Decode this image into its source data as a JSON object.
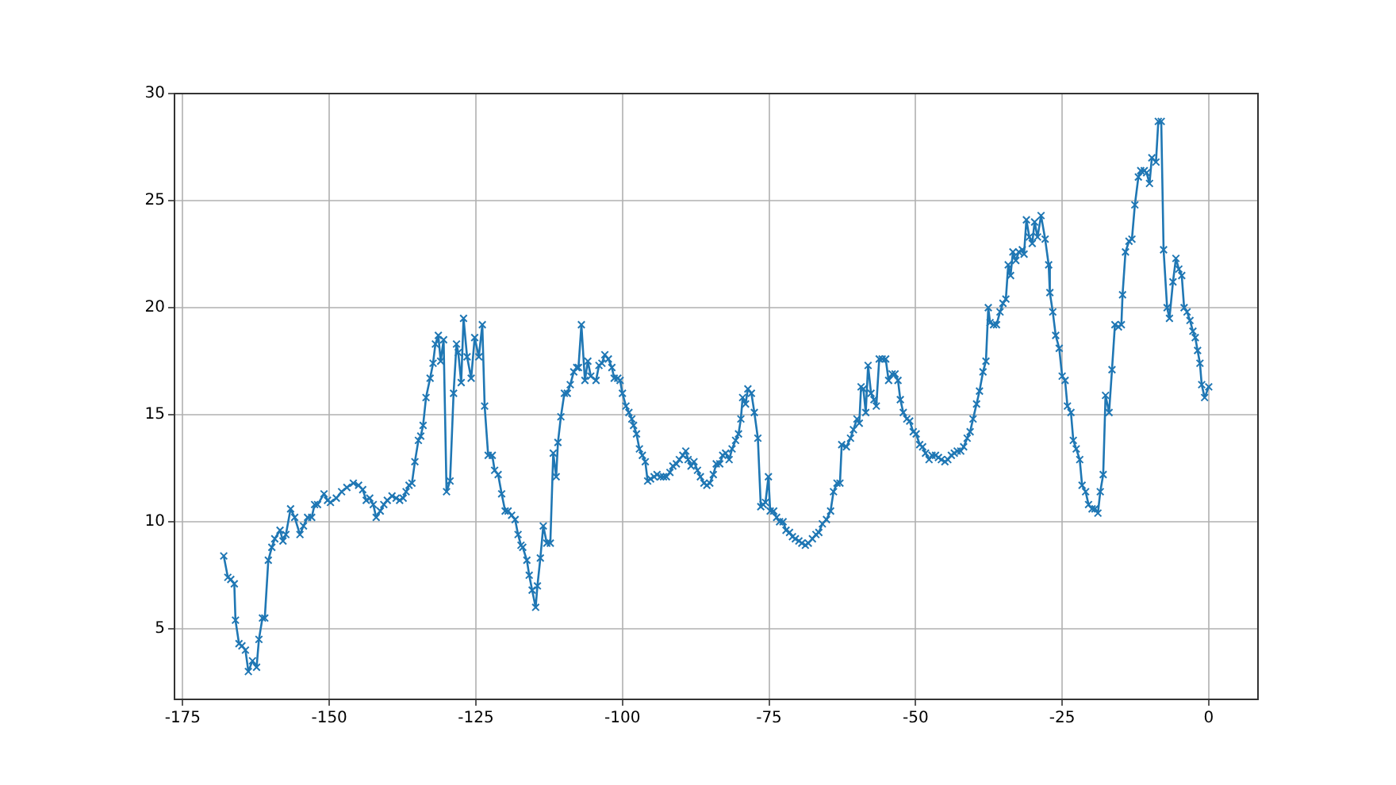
{
  "chart_data": {
    "type": "line",
    "x": [
      -168,
      -167.3,
      -166.8,
      -166.2,
      -166,
      -165.4,
      -164.9,
      -164.3,
      -163.8,
      -163.1,
      -162.4,
      -162,
      -161.4,
      -161,
      -160.4,
      -159.8,
      -159.3,
      -158.4,
      -157.9,
      -157.4,
      -156.6,
      -155.9,
      -155,
      -154.4,
      -153.7,
      -153,
      -152.5,
      -152,
      -150.9,
      -150.3,
      -149.8,
      -148.8,
      -147.9,
      -147,
      -145.9,
      -145,
      -144.3,
      -143.7,
      -143.1,
      -142.5,
      -142,
      -141.3,
      -140.7,
      -140.1,
      -139.3,
      -138.6,
      -138,
      -137.4,
      -136.9,
      -136.4,
      -135.9,
      -135.4,
      -134.8,
      -134.4,
      -134,
      -133.5,
      -132.8,
      -132.3,
      -131.9,
      -131.4,
      -131,
      -130.5,
      -130,
      -129.4,
      -128.8,
      -128.3,
      -128,
      -127.5,
      -127.1,
      -126.5,
      -125.8,
      -125.2,
      -124.5,
      -123.9,
      -123.5,
      -122.9,
      -122.2,
      -121.8,
      -121.2,
      -120.6,
      -120,
      -119.5,
      -118.9,
      -118.3,
      -117.8,
      -117.3,
      -117,
      -116.3,
      -115.9,
      -115.4,
      -114.8,
      -114.5,
      -114,
      -113.5,
      -112.9,
      -112.3,
      -111.8,
      -111.3,
      -111,
      -110.5,
      -109.9,
      -109.4,
      -108.9,
      -108.3,
      -107.8,
      -107.5,
      -107,
      -106.4,
      -105.9,
      -105.4,
      -104.5,
      -104,
      -103.5,
      -103,
      -102.4,
      -101.8,
      -101.4,
      -100.8,
      -100.4,
      -100,
      -99.4,
      -98.9,
      -98.4,
      -98.1,
      -97.6,
      -97.1,
      -96.6,
      -96.1,
      -95.7,
      -95.2,
      -94.6,
      -94.1,
      -93.5,
      -93,
      -92.5,
      -91.9,
      -91.4,
      -90.8,
      -90.3,
      -89.7,
      -89.2,
      -88.8,
      -88.3,
      -87.8,
      -87.2,
      -86.7,
      -86.1,
      -85.6,
      -85.1,
      -84.5,
      -84,
      -83.4,
      -82.9,
      -82.4,
      -81.8,
      -81.3,
      -80.7,
      -80.2,
      -79.8,
      -79.5,
      -79,
      -78.6,
      -78,
      -77.5,
      -76.9,
      -76.4,
      -76,
      -75.6,
      -75.1,
      -74.8,
      -74.2,
      -73.7,
      -73.2,
      -72.6,
      -72.1,
      -71.5,
      -71,
      -70.5,
      -69.9,
      -69.4,
      -68.8,
      -68.3,
      -67.6,
      -67,
      -66.5,
      -65.9,
      -65.2,
      -64.5,
      -64,
      -63.4,
      -62.9,
      -62.6,
      -61.8,
      -61.1,
      -60.6,
      -60,
      -59.6,
      -59.3,
      -58.9,
      -58.5,
      -58.1,
      -57.6,
      -57.1,
      -56.7,
      -56.2,
      -55.7,
      -55.1,
      -54.6,
      -54,
      -53.5,
      -53,
      -52.6,
      -52.1,
      -51.5,
      -51,
      -50.4,
      -49.9,
      -49.3,
      -48.8,
      -48.3,
      -47.7,
      -47.2,
      -46.6,
      -46.1,
      -45.6,
      -45,
      -44.5,
      -43.9,
      -43.4,
      -42.9,
      -42.3,
      -41.8,
      -41.2,
      -40.7,
      -40.2,
      -39.6,
      -39.1,
      -38.5,
      -38,
      -37.6,
      -37.3,
      -36.7,
      -36.2,
      -35.6,
      -35.1,
      -34.6,
      -34.2,
      -33.8,
      -33.4,
      -32.9,
      -32.4,
      -31.8,
      -31.5,
      -31.1,
      -30.6,
      -30.1,
      -29.7,
      -29.2,
      -28.6,
      -27.9,
      -27.3,
      -27.1,
      -26.6,
      -26.1,
      -25.5,
      -25,
      -24.5,
      -24.1,
      -23.5,
      -23.1,
      -22.6,
      -22,
      -21.6,
      -21,
      -20.5,
      -19.9,
      -19.4,
      -18.9,
      -18.5,
      -18,
      -17.6,
      -17,
      -16.5,
      -16,
      -15.4,
      -14.9,
      -14.7,
      -14.2,
      -13.6,
      -13.1,
      -12.6,
      -12,
      -11.6,
      -11,
      -10.6,
      -10.1,
      -9.7,
      -9,
      -8.6,
      -8.1,
      -7.7,
      -7.1,
      -6.7,
      -6.1,
      -5.6,
      -5.1,
      -4.6,
      -4.2,
      -3.7,
      -3.2,
      -2.7,
      -2.3,
      -1.9,
      -1.5,
      -1.2,
      -0.7,
      0
    ],
    "series": [
      {
        "color": "#1f77b4",
        "values": [
          8.4,
          7.4,
          7.3,
          7.1,
          5.4,
          4.3,
          4.2,
          4.0,
          3.0,
          3.5,
          3.2,
          4.5,
          5.5,
          5.5,
          8.2,
          8.8,
          9.2,
          9.6,
          9.1,
          9.4,
          10.6,
          10.2,
          9.4,
          9.8,
          10.2,
          10.2,
          10.8,
          10.8,
          11.3,
          11.0,
          10.9,
          11.1,
          11.4,
          11.6,
          11.8,
          11.7,
          11.5,
          11.0,
          11.1,
          10.8,
          10.2,
          10.5,
          10.8,
          11.0,
          11.2,
          11.1,
          11.0,
          11.1,
          11.4,
          11.7,
          11.8,
          12.8,
          13.8,
          14.0,
          14.5,
          15.8,
          16.7,
          17.4,
          18.3,
          18.7,
          17.5,
          18.5,
          11.4,
          11.9,
          16.0,
          18.3,
          17.9,
          16.5,
          19.5,
          17.7,
          16.7,
          18.6,
          17.7,
          19.2,
          15.4,
          13.1,
          13.1,
          12.4,
          12.2,
          11.3,
          10.5,
          10.5,
          10.3,
          10.1,
          9.4,
          8.9,
          8.8,
          8.2,
          7.5,
          6.8,
          6.0,
          7.0,
          8.3,
          9.8,
          9.0,
          9.0,
          13.2,
          12.1,
          13.7,
          14.9,
          16.0,
          16.0,
          16.4,
          17.0,
          17.2,
          17.2,
          19.2,
          16.6,
          17.5,
          16.8,
          16.6,
          17.3,
          17.4,
          17.8,
          17.6,
          17.2,
          16.7,
          16.7,
          16.6,
          16.0,
          15.4,
          15.1,
          14.8,
          14.5,
          14.1,
          13.4,
          13.1,
          12.8,
          11.9,
          12.0,
          12.1,
          12.2,
          12.1,
          12.1,
          12.1,
          12.3,
          12.6,
          12.7,
          12.9,
          13.1,
          13.3,
          12.9,
          12.6,
          12.8,
          12.4,
          12.1,
          11.8,
          11.7,
          11.8,
          12.2,
          12.7,
          12.7,
          13.1,
          13.2,
          12.9,
          13.4,
          13.8,
          14.1,
          14.8,
          15.8,
          15.5,
          16.2,
          16.0,
          15.1,
          13.9,
          10.7,
          10.8,
          10.9,
          12.1,
          10.5,
          10.5,
          10.2,
          10.0,
          10.0,
          9.6,
          9.5,
          9.3,
          9.2,
          9.1,
          9.0,
          8.9,
          9.0,
          9.2,
          9.4,
          9.5,
          9.9,
          10.1,
          10.5,
          11.4,
          11.8,
          11.8,
          13.6,
          13.5,
          13.9,
          14.3,
          14.8,
          14.6,
          16.3,
          16.2,
          15.1,
          17.3,
          16.0,
          15.7,
          15.4,
          17.6,
          17.6,
          17.6,
          16.6,
          16.9,
          16.9,
          16.6,
          15.7,
          15.1,
          14.8,
          14.7,
          14.2,
          14.1,
          13.6,
          13.5,
          13.2,
          12.9,
          13.1,
          13.1,
          13.0,
          12.9,
          12.8,
          12.9,
          13.1,
          13.2,
          13.3,
          13.3,
          13.5,
          13.9,
          14.2,
          14.8,
          15.5,
          16.1,
          17.0,
          17.5,
          20.0,
          19.3,
          19.2,
          19.2,
          19.8,
          20.2,
          20.4,
          22.0,
          21.5,
          22.6,
          22.2,
          22.6,
          22.7,
          22.5,
          24.1,
          23.3,
          23.0,
          24.0,
          23.3,
          24.3,
          23.2,
          22.0,
          20.7,
          19.8,
          18.7,
          18.1,
          16.8,
          16.6,
          15.4,
          15.1,
          13.8,
          13.4,
          12.9,
          11.7,
          11.4,
          10.8,
          10.6,
          10.6,
          10.4,
          11.4,
          12.2,
          15.9,
          15.1,
          17.1,
          19.2,
          19.1,
          19.2,
          20.6,
          22.6,
          23.1,
          23.2,
          24.8,
          26.1,
          26.4,
          26.4,
          26.3,
          25.8,
          27.0,
          26.8,
          28.7,
          28.7,
          22.7,
          20.0,
          19.5,
          21.2,
          22.3,
          21.8,
          21.5,
          20.0,
          19.8,
          19.4,
          18.9,
          18.6,
          18.0,
          17.4,
          16.4,
          15.8,
          16.3
        ]
      }
    ],
    "xlim": [
      -176.4,
      8.4
    ],
    "ylim": [
      1.7,
      30
    ],
    "xticks": [
      -175,
      -150,
      -125,
      -100,
      -75,
      -50,
      -25,
      0
    ],
    "yticks": [
      5,
      10,
      15,
      20,
      25,
      30
    ],
    "grid": true,
    "marker": "cross",
    "line_style": "solid"
  }
}
